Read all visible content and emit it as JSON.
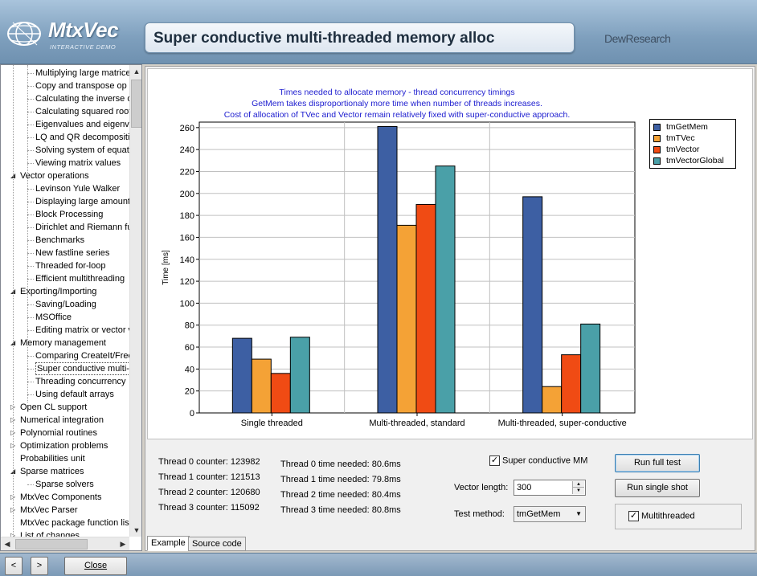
{
  "header": {
    "logo_name": "MtxVec",
    "logo_sub": "INTERACTIVE DEMO",
    "title": "Super conductive multi-threaded memory alloc",
    "company": "DewResearch"
  },
  "tree": {
    "items": [
      {
        "label": "Multiplying large matrice",
        "level": 2
      },
      {
        "label": "Copy and  transpose op",
        "level": 2
      },
      {
        "label": "Calculating the inverse o",
        "level": 2
      },
      {
        "label": "Calculating squared root",
        "level": 2
      },
      {
        "label": "Eigenvalues and eigenv",
        "level": 2
      },
      {
        "label": "LQ and QR decompositi",
        "level": 2
      },
      {
        "label": "Solving system of equat",
        "level": 2
      },
      {
        "label": "Viewing matrix values",
        "level": 2
      },
      {
        "label": "Vector operations",
        "level": 1,
        "expander": "◢"
      },
      {
        "label": "Levinson Yule Walker",
        "level": 2
      },
      {
        "label": "Displaying large amount",
        "level": 2
      },
      {
        "label": "Block Processing",
        "level": 2
      },
      {
        "label": "Dirichlet and Riemann fu",
        "level": 2
      },
      {
        "label": "Benchmarks",
        "level": 2
      },
      {
        "label": "New fastline series",
        "level": 2
      },
      {
        "label": "Threaded for-loop",
        "level": 2
      },
      {
        "label": "Efficient multithreading",
        "level": 2
      },
      {
        "label": "Exporting/Importing",
        "level": 1,
        "expander": "◢"
      },
      {
        "label": "Saving/Loading",
        "level": 2
      },
      {
        "label": "MSOffice",
        "level": 2
      },
      {
        "label": "Editing matrix or vector v",
        "level": 2
      },
      {
        "label": "Memory management",
        "level": 1,
        "expander": "◢"
      },
      {
        "label": "Comparing CreateIt/Free",
        "level": 2
      },
      {
        "label": "Super conductive multi-t",
        "level": 2,
        "selected": true
      },
      {
        "label": "Threading concurrency",
        "level": 2
      },
      {
        "label": "Using default arrays",
        "level": 2
      },
      {
        "label": "Open CL support",
        "level": 1,
        "expander": "▷"
      },
      {
        "label": "Numerical integration",
        "level": 1,
        "expander": "▷"
      },
      {
        "label": "Polynomial routines",
        "level": 1,
        "expander": "▷"
      },
      {
        "label": "Optimization problems",
        "level": 1,
        "expander": "▷"
      },
      {
        "label": "Probabilities unit",
        "level": 1
      },
      {
        "label": "Sparse matrices",
        "level": 1,
        "expander": "◢"
      },
      {
        "label": "Sparse solvers",
        "level": 2
      },
      {
        "label": "MtxVec Components",
        "level": 1,
        "expander": "▷"
      },
      {
        "label": "MtxVec Parser",
        "level": 1,
        "expander": "▷"
      },
      {
        "label": "MtxVec package function lis",
        "level": 1
      },
      {
        "label": "List of changes",
        "level": 1,
        "expander": "▷"
      }
    ]
  },
  "chart_data": {
    "type": "bar",
    "title_lines": [
      "Times needed to allocate memory - thread concurrency timings",
      "GetMem takes disproportionaly more time when number of threads increases.",
      "Cost of allocation of TVec and Vector remain relatively fixed with super-conductive approach."
    ],
    "ylabel": "Time [ms]",
    "xlabel": "",
    "ylim": [
      0,
      265
    ],
    "yticks": [
      0,
      20,
      40,
      60,
      80,
      100,
      120,
      140,
      160,
      180,
      200,
      220,
      240,
      260
    ],
    "grid": true,
    "legend_position": "top-right",
    "categories": [
      "Single threaded",
      "Multi-threaded, standard",
      "Multi-threaded, super-conductive"
    ],
    "series": [
      {
        "name": "tmGetMem",
        "color": "#3d5fa3",
        "values": [
          68,
          261,
          197
        ]
      },
      {
        "name": "tmTVec",
        "color": "#f4a236",
        "values": [
          49,
          171,
          24
        ]
      },
      {
        "name": "tmVector",
        "color": "#f04b14",
        "values": [
          36,
          190,
          53
        ]
      },
      {
        "name": "tmVectorGlobal",
        "color": "#4aa0a8",
        "values": [
          69,
          225,
          81
        ]
      }
    ]
  },
  "info": {
    "counters": [
      "Thread 0 counter: 123982",
      "Thread 1 counter: 121513",
      "Thread 2 counter: 120680",
      "Thread 3 counter: 115092"
    ],
    "times": [
      "Thread 0 time needed: 80.6ms",
      "Thread 1 time needed: 79.8ms",
      "Thread 2 time needed: 80.4ms",
      "Thread 3 time needed: 80.8ms"
    ],
    "super_conductive_label": "Super conductive MM",
    "super_conductive_checked": "✓",
    "vector_length_label": "Vector length:",
    "vector_length_value": "300",
    "test_method_label": "Test method:",
    "test_method_value": "tmGetMem",
    "run_full_label": "Run full test",
    "run_single_label": "Run single shot",
    "multithreaded_label": "Multithreaded",
    "multithreaded_checked": "✓"
  },
  "tabs": [
    "Example",
    "Source code"
  ],
  "footer": {
    "back_glyph": "<",
    "forward_glyph": ">",
    "close_label": "Close"
  }
}
